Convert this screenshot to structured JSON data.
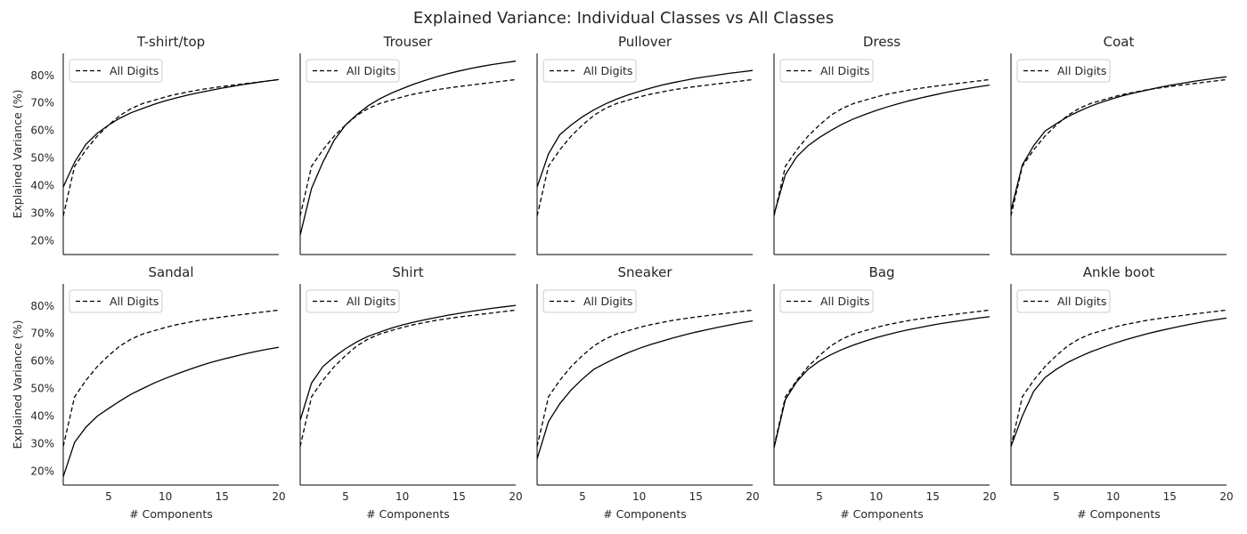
{
  "chart_data": {
    "type": "line",
    "title": "Explained Variance: Individual Classes vs All Classes",
    "xlabel": "# Components",
    "ylabel": "Explained Variance (%)",
    "xlim": [
      1,
      20
    ],
    "ylim": [
      15,
      88
    ],
    "xticks": [
      5,
      10,
      15,
      20
    ],
    "yticks": [
      20,
      30,
      40,
      50,
      60,
      70,
      80
    ],
    "ytick_suffix": "%",
    "grid": false,
    "legend": "top-left",
    "x": [
      1,
      2,
      3,
      4,
      5,
      6,
      7,
      8,
      9,
      10,
      11,
      12,
      13,
      14,
      15,
      16,
      17,
      18,
      19,
      20
    ],
    "reference": {
      "name": "All Digits",
      "style": "dashed",
      "values": [
        29.0,
        47.0,
        53.0,
        58.0,
        62.0,
        65.5,
        68.0,
        69.8,
        71.0,
        72.2,
        73.2,
        74.0,
        74.8,
        75.4,
        76.0,
        76.5,
        77.0,
        77.5,
        78.0,
        78.5
      ]
    },
    "panels": [
      {
        "title": "T-shirt/top",
        "values": [
          39.5,
          48.5,
          55.0,
          59.0,
          62.0,
          64.5,
          66.5,
          68.0,
          69.5,
          70.8,
          71.9,
          72.9,
          73.8,
          74.6,
          75.4,
          76.1,
          76.8,
          77.4,
          78.0,
          78.5
        ]
      },
      {
        "title": "Trouser",
        "values": [
          22.0,
          39.0,
          48.5,
          56.5,
          62.0,
          65.8,
          69.0,
          71.5,
          73.5,
          75.2,
          76.8,
          78.2,
          79.5,
          80.6,
          81.6,
          82.5,
          83.3,
          84.0,
          84.6,
          85.2
        ]
      },
      {
        "title": "Pullover",
        "values": [
          39.5,
          51.5,
          58.5,
          62.0,
          65.0,
          67.5,
          69.6,
          71.4,
          72.9,
          74.2,
          75.4,
          76.5,
          77.4,
          78.2,
          79.0,
          79.6,
          80.2,
          80.8,
          81.3,
          81.8
        ]
      },
      {
        "title": "Dress",
        "values": [
          29.5,
          44.0,
          50.5,
          54.5,
          57.5,
          60.0,
          62.3,
          64.2,
          65.8,
          67.3,
          68.6,
          69.8,
          70.9,
          71.9,
          72.8,
          73.7,
          74.5,
          75.2,
          75.9,
          76.5
        ]
      },
      {
        "title": "Coat",
        "values": [
          31.0,
          47.5,
          54.5,
          59.8,
          62.5,
          65.0,
          67.0,
          68.8,
          70.3,
          71.6,
          72.8,
          73.8,
          74.7,
          75.6,
          76.4,
          77.1,
          77.8,
          78.4,
          79.0,
          79.5
        ]
      },
      {
        "title": "Sandal",
        "values": [
          18.0,
          30.5,
          36.0,
          40.0,
          42.8,
          45.5,
          48.0,
          50.0,
          52.0,
          53.7,
          55.3,
          56.8,
          58.2,
          59.5,
          60.6,
          61.6,
          62.6,
          63.5,
          64.3,
          65.0
        ]
      },
      {
        "title": "Shirt",
        "values": [
          38.5,
          52.0,
          58.0,
          61.5,
          64.5,
          67.0,
          69.0,
          70.5,
          71.9,
          73.1,
          74.1,
          75.0,
          75.8,
          76.6,
          77.3,
          78.0,
          78.6,
          79.2,
          79.7,
          80.2
        ]
      },
      {
        "title": "Sneaker",
        "values": [
          24.5,
          38.0,
          44.5,
          49.5,
          53.5,
          57.0,
          59.2,
          61.2,
          63.0,
          64.6,
          66.0,
          67.2,
          68.4,
          69.5,
          70.5,
          71.4,
          72.3,
          73.1,
          73.9,
          74.6
        ]
      },
      {
        "title": "Bag",
        "values": [
          28.5,
          46.0,
          52.5,
          57.0,
          60.0,
          62.3,
          64.2,
          65.8,
          67.2,
          68.5,
          69.6,
          70.6,
          71.5,
          72.3,
          73.1,
          73.8,
          74.4,
          75.0,
          75.6,
          76.1
        ]
      },
      {
        "title": "Ankle boot",
        "values": [
          29.0,
          40.0,
          49.0,
          54.0,
          57.0,
          59.5,
          61.5,
          63.3,
          64.8,
          66.3,
          67.6,
          68.8,
          69.9,
          70.9,
          71.8,
          72.7,
          73.5,
          74.3,
          75.0,
          75.6
        ]
      }
    ]
  }
}
